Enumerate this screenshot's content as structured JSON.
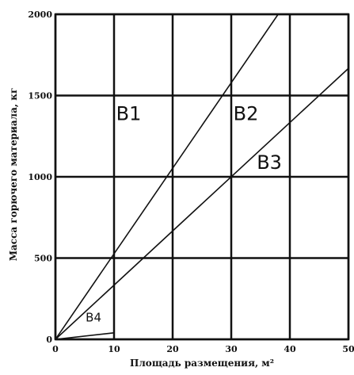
{
  "chart_data": {
    "type": "line",
    "title": "",
    "xlabel": "Площадь размещения, м²",
    "ylabel": "Масса горючего материала, кг",
    "xlim": [
      0,
      50
    ],
    "ylim": [
      0,
      2000
    ],
    "x_ticks": [
      "0",
      "10",
      "20",
      "30",
      "40",
      "50"
    ],
    "y_ticks": [
      "0",
      "500",
      "1000",
      "1500",
      "2000"
    ],
    "grid": true,
    "lines": [
      {
        "x": [
          0,
          38
        ],
        "y": [
          0,
          2000
        ]
      },
      {
        "x": [
          0,
          50
        ],
        "y": [
          0,
          1667
        ]
      }
    ],
    "small_boundary": {
      "x": [
        0,
        10,
        10
      ],
      "y": [
        0,
        40,
        0
      ]
    },
    "regions": [
      {
        "label": "В1",
        "x": 12.5,
        "y": 1350
      },
      {
        "label": "В2",
        "x": 32.5,
        "y": 1350
      },
      {
        "label": "В3",
        "x": 36.5,
        "y": 1050
      },
      {
        "label": "В4",
        "x": 6.5,
        "y": 110
      }
    ]
  }
}
